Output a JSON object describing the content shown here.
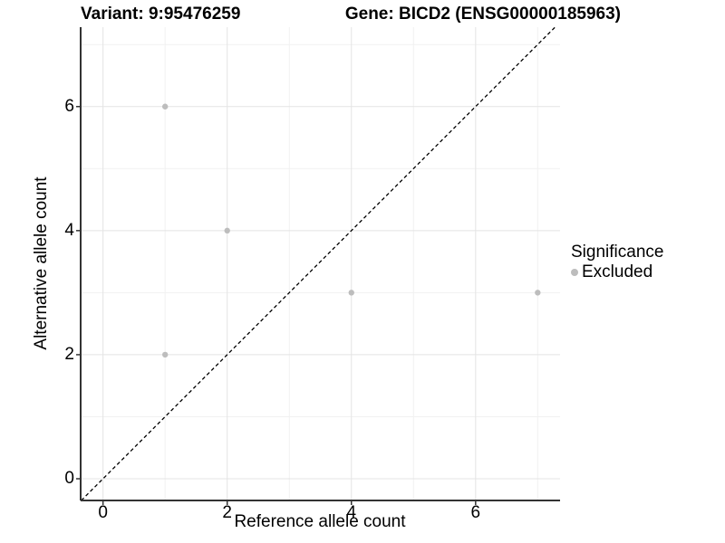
{
  "chart_data": {
    "type": "scatter",
    "titles": {
      "left": "Variant: 9:95476259",
      "right": "Gene: BICD2 (ENSG00000185963)"
    },
    "xlabel": "Reference allele count",
    "ylabel": "Alternative allele count",
    "xlim": [
      -0.36,
      7.36
    ],
    "ylim": [
      -0.35,
      7.28
    ],
    "x_ticks": [
      0,
      2,
      4,
      6
    ],
    "y_ticks": [
      0,
      2,
      4,
      6
    ],
    "x_minor": [
      1,
      3,
      5,
      7
    ],
    "y_minor": [
      1,
      3,
      5,
      7
    ],
    "grid": true,
    "identity_line": {
      "equation": "y = x",
      "style": "dashed",
      "color": "#000000"
    },
    "series": [
      {
        "name": "Excluded",
        "color": "#bdbdbd",
        "points": [
          [
            1,
            2
          ],
          [
            1,
            6
          ],
          [
            2,
            4
          ],
          [
            4,
            3
          ],
          [
            7,
            3
          ]
        ]
      }
    ],
    "legend": {
      "title": "Significance",
      "position": "right",
      "items": [
        {
          "label": "Excluded",
          "color": "#bdbdbd"
        }
      ]
    },
    "colors": {
      "background": "#ffffff",
      "grid_major": "#e4e4e4",
      "grid_minor": "#f1f1f1",
      "axis_line": "#333333",
      "text": "#000000",
      "tick_mark": "#333333"
    }
  }
}
